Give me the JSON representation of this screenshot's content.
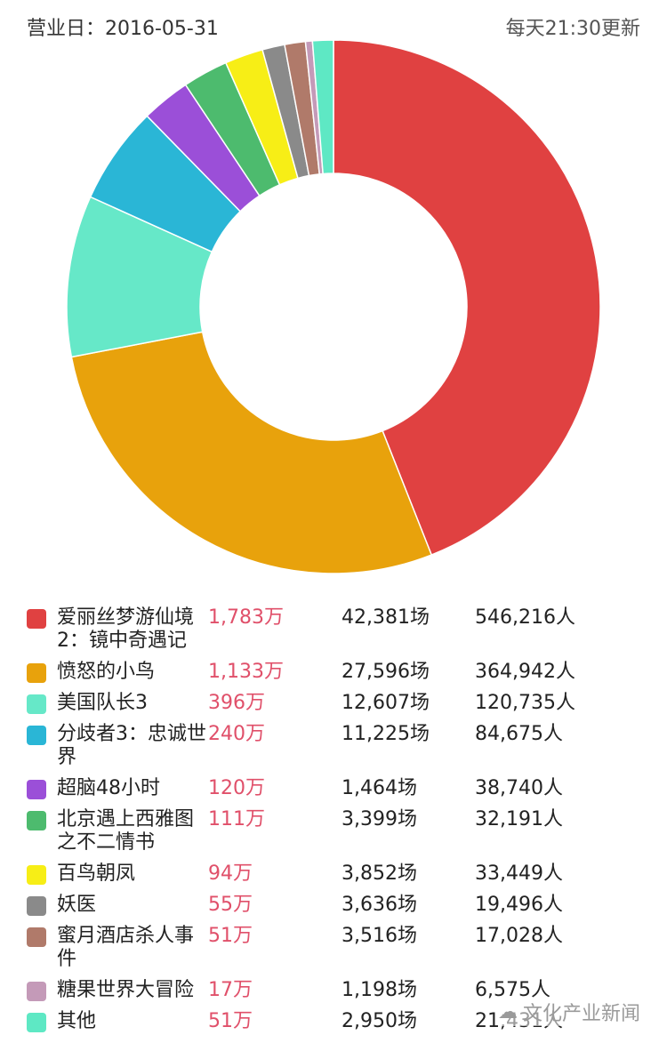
{
  "header": {
    "date_label": "营业日：2016-05-31",
    "update_label": "每天21:30更新"
  },
  "chart_data": {
    "type": "pie",
    "donut": true,
    "legend_position": "bottom",
    "categories": [
      "爱丽丝梦游仙境2：镜中奇遇记",
      "愤怒的小鸟",
      "美国队长3",
      "分歧者3：忠诚世界",
      "超脑48小时",
      "北京遇上西雅图之不二情书",
      "百鸟朝凤",
      "妖医",
      "蜜月酒店杀人事件",
      "糖果世界大冒险",
      "其他"
    ],
    "values": [
      1783,
      1133,
      396,
      240,
      120,
      111,
      94,
      55,
      51,
      17,
      51
    ],
    "unit": "万",
    "colors": [
      "#e04141",
      "#e8a20c",
      "#66e8c8",
      "#2ab6d6",
      "#9b4fd8",
      "#4dbb6e",
      "#f7ee16",
      "#8a8a8a",
      "#b07a6a",
      "#c49ab8",
      "#5ee8c4"
    ]
  },
  "table": {
    "rows": [
      {
        "name": "爱丽丝梦游仙境2：镜中奇遇记",
        "revenue": "1,783万",
        "sessions": "42,381场",
        "audience": "546,216人"
      },
      {
        "name": "愤怒的小鸟",
        "revenue": "1,133万",
        "sessions": "27,596场",
        "audience": "364,942人"
      },
      {
        "name": "美国队长3",
        "revenue": "396万",
        "sessions": "12,607场",
        "audience": "120,735人"
      },
      {
        "name": "分歧者3：忠诚世界",
        "revenue": "240万",
        "sessions": "11,225场",
        "audience": "84,675人"
      },
      {
        "name": "超脑48小时",
        "revenue": "120万",
        "sessions": "1,464场",
        "audience": "38,740人"
      },
      {
        "name": "北京遇上西雅图之不二情书",
        "revenue": "111万",
        "sessions": "3,399场",
        "audience": "32,191人"
      },
      {
        "name": "百鸟朝凤",
        "revenue": "94万",
        "sessions": "3,852场",
        "audience": "33,449人"
      },
      {
        "name": "妖医",
        "revenue": "55万",
        "sessions": "3,636场",
        "audience": "19,496人"
      },
      {
        "name": "蜜月酒店杀人事件",
        "revenue": "51万",
        "sessions": "3,516场",
        "audience": "17,028人"
      },
      {
        "name": "糖果世界大冒险",
        "revenue": "17万",
        "sessions": "1,198场",
        "audience": "6,575人"
      },
      {
        "name": "其他",
        "revenue": "51万",
        "sessions": "2,950场",
        "audience": "21,431人"
      }
    ]
  },
  "watermark": {
    "icon": "wechat-icon",
    "text": "文化产业新闻"
  }
}
